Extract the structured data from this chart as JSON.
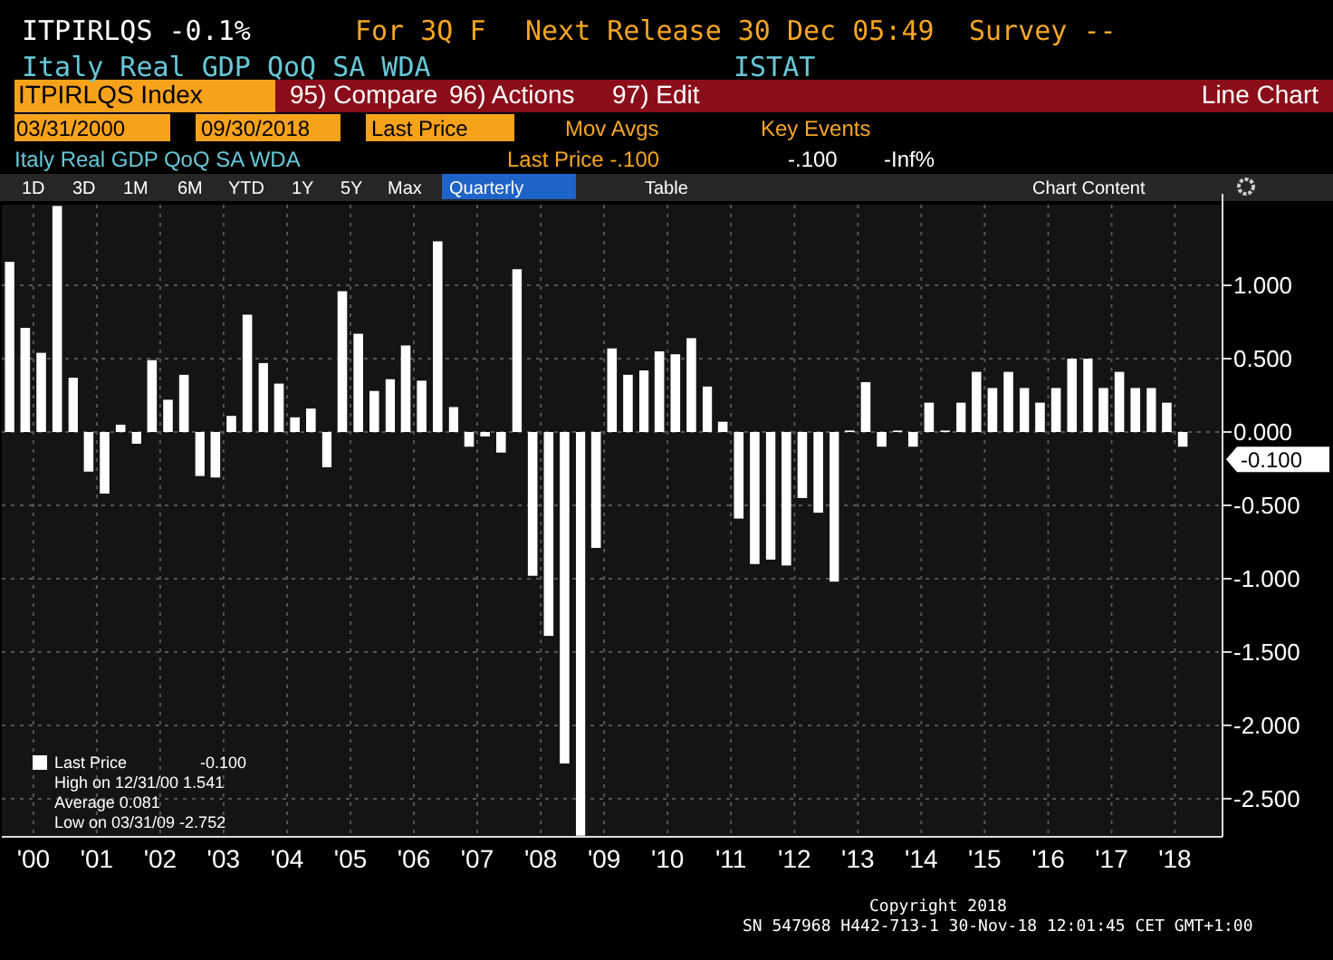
{
  "chart_data": {
    "type": "bar",
    "title": "Italy Real GDP QoQ SA WDA",
    "x": [
      "2000-02-15",
      "2000-05-15",
      "2000-08-15",
      "2000-11-15",
      "2001-02-15",
      "2001-05-15",
      "2001-08-15",
      "2001-11-15",
      "2002-02-15",
      "2002-05-15",
      "2002-08-15",
      "2002-11-15",
      "2003-02-15",
      "2003-05-15",
      "2003-08-15",
      "2003-11-15",
      "2004-02-15",
      "2004-05-15",
      "2004-08-15",
      "2004-11-15",
      "2005-02-15",
      "2005-05-15",
      "2005-08-15",
      "2005-11-15",
      "2006-02-15",
      "2006-05-15",
      "2006-08-15",
      "2006-11-15",
      "2007-02-15",
      "2007-05-15",
      "2007-08-15",
      "2007-11-15",
      "2008-02-15",
      "2008-05-15",
      "2008-08-15",
      "2008-11-15",
      "2009-02-15",
      "2009-05-15",
      "2009-08-15",
      "2009-11-15",
      "2010-02-15",
      "2010-05-15",
      "2010-08-15",
      "2010-11-15",
      "2011-02-15",
      "2011-05-15",
      "2011-08-15",
      "2011-11-15",
      "2012-02-15",
      "2012-05-15",
      "2012-08-15",
      "2012-11-15",
      "2013-02-15",
      "2013-05-15",
      "2013-08-15",
      "2013-11-15",
      "2014-02-15",
      "2014-05-15",
      "2014-08-15",
      "2014-11-15",
      "2015-02-15",
      "2015-05-15",
      "2015-08-15",
      "2015-11-15",
      "2016-02-15",
      "2016-05-15",
      "2016-08-15",
      "2016-11-15",
      "2017-02-15",
      "2017-05-15",
      "2017-08-15",
      "2017-11-15",
      "2018-02-15",
      "2018-05-15",
      "2018-08-15"
    ],
    "series": [
      {
        "name": "Last Price",
        "color": "#ffffff",
        "values": [
          1.16,
          0.71,
          0.54,
          1.541,
          0.37,
          -0.27,
          -0.42,
          0.05,
          -0.08,
          0.49,
          0.22,
          0.39,
          -0.3,
          -0.31,
          0.11,
          0.8,
          0.47,
          0.33,
          0.1,
          0.16,
          -0.24,
          0.96,
          0.67,
          0.28,
          0.36,
          0.59,
          0.35,
          1.3,
          0.17,
          -0.1,
          -0.03,
          -0.14,
          1.11,
          -0.98,
          -1.39,
          -2.26,
          -2.752,
          -0.79,
          0.57,
          0.39,
          0.42,
          0.55,
          0.53,
          0.64,
          0.31,
          0.07,
          -0.59,
          -0.9,
          -0.87,
          -0.91,
          -0.45,
          -0.55,
          -1.02,
          0.01,
          0.34,
          -0.1,
          0.01,
          -0.1,
          0.2,
          0.01,
          0.2,
          0.41,
          0.3,
          0.41,
          0.3,
          0.2,
          0.3,
          0.5,
          0.5,
          0.3,
          0.41,
          0.3,
          0.3,
          0.2,
          -0.1
        ]
      }
    ],
    "xlim": [
      "2000-01",
      "2019-04"
    ],
    "xticks": [
      {
        "value": "2000-07",
        "label": "'00"
      },
      {
        "value": "2001-07",
        "label": "'01"
      },
      {
        "value": "2002-07",
        "label": "'02"
      },
      {
        "value": "2003-07",
        "label": "'03"
      },
      {
        "value": "2004-07",
        "label": "'04"
      },
      {
        "value": "2005-07",
        "label": "'05"
      },
      {
        "value": "2006-07",
        "label": "'06"
      },
      {
        "value": "2007-07",
        "label": "'07"
      },
      {
        "value": "2008-07",
        "label": "'08"
      },
      {
        "value": "2009-07",
        "label": "'09"
      },
      {
        "value": "2010-07",
        "label": "'10"
      },
      {
        "value": "2011-07",
        "label": "'11"
      },
      {
        "value": "2012-07",
        "label": "'12"
      },
      {
        "value": "2013-07",
        "label": "'13"
      },
      {
        "value": "2014-07",
        "label": "'14"
      },
      {
        "value": "2015-07",
        "label": "'15"
      },
      {
        "value": "2016-07",
        "label": "'16"
      },
      {
        "value": "2017-07",
        "label": "'17"
      },
      {
        "value": "2018-07",
        "label": "'18"
      }
    ],
    "ylim": [
      -2.76,
      1.55
    ],
    "yticks": [
      {
        "value": 1,
        "label": "1.000"
      },
      {
        "value": 0.5,
        "label": "0.500"
      },
      {
        "value": 0,
        "label": "0.000"
      },
      {
        "value": -0.5,
        "label": "-0.500"
      },
      {
        "value": -1,
        "label": "-1.000"
      },
      {
        "value": -1.5,
        "label": "-1.500"
      },
      {
        "value": -2,
        "label": "-2.000"
      },
      {
        "value": -2.5,
        "label": "-2.500"
      }
    ],
    "grid": true,
    "legend": "bottom left",
    "annotations": [
      "ITPIRLQS  -0.1%",
      "For 3Q F",
      "Next Release 30 Dec 05:49",
      "Survey --",
      "ISTAT",
      "ITPIRLQS Index",
      "95) Compare",
      "96) Actions",
      "97) Edit",
      "Line Chart",
      "03/31/2000",
      "09/30/2018",
      "Last Price",
      "Mov Avgs",
      "Key Events",
      "Italy Real GDP QoQ SA WDA",
      "Last Price -.100",
      "-.100",
      "-Inf%",
      "1D",
      "3D",
      "1M",
      "6M",
      "YTD",
      "1Y",
      "5Y",
      "Max",
      "Quarterly",
      "Table",
      "Chart Content",
      "-0.100",
      "High on 12/31/00  1.541",
      "Average  0.081",
      "Low on 03/31/09  -2.752",
      "-0.100",
      "Copyright 2018",
      "SN 547968 H442-713-1 30-Nov-18 12:01:45 CET  GMT+1:00"
    ]
  }
}
